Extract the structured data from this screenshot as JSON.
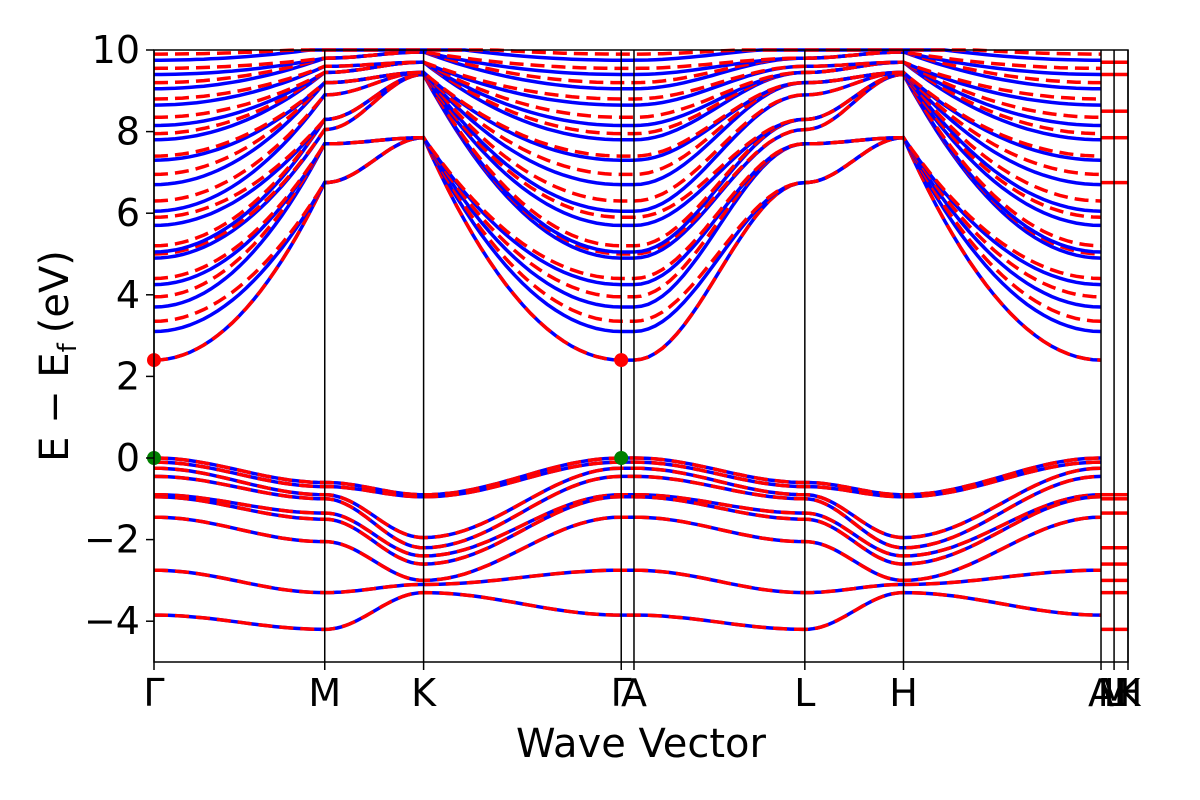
{
  "chart_data": {
    "type": "line",
    "xlabel": "Wave Vector",
    "ylabel_main": "E − E",
    "ylabel_sub": "f",
    "ylabel_unit": "(eV)",
    "ylim": [
      -5,
      10
    ],
    "yticks": [
      10,
      8,
      6,
      4,
      2,
      0,
      -2,
      -4
    ],
    "ytick_labels": [
      "10",
      "8",
      "6",
      "4",
      "2",
      "0",
      "−2",
      "−4"
    ],
    "kpath": [
      {
        "label": "Γ",
        "x": 0.0
      },
      {
        "label": "M",
        "x": 0.1753
      },
      {
        "label": "K",
        "x": 0.2768
      },
      {
        "label": "Γ",
        "x": 0.4797
      },
      {
        "label": "A",
        "x": 0.4928
      },
      {
        "label": "L",
        "x": 0.6682
      },
      {
        "label": "H",
        "x": 0.7695
      },
      {
        "label": "A",
        "x": 0.9723
      },
      {
        "label": "L",
        "x": 0.9857
      },
      {
        "label": "M",
        "x": 0.9857
      },
      {
        "label": "K",
        "x": 1.0
      },
      {
        "label": "H",
        "x": 1.0
      }
    ],
    "segment_boundaries": [
      0.0,
      0.1753,
      0.2768,
      0.4797,
      0.4928,
      0.6682,
      0.7695,
      0.9723,
      0.9857,
      1.0
    ],
    "series": [
      {
        "style": "solid",
        "color": "#0000ff"
      },
      {
        "style": "dashed",
        "color": "#ff0000"
      }
    ],
    "vbm": {
      "energy": 0.0,
      "x": [
        0.0,
        0.4797
      ],
      "color": "#008000"
    },
    "cbm": {
      "energy": 2.4,
      "x": [
        0.0,
        0.4797
      ],
      "color": "#ff0000"
    },
    "valence_at_gamma": [
      0.0,
      -0.1,
      -0.25,
      -0.45,
      -0.9,
      -0.95,
      -1.45,
      -2.75,
      -3.85
    ],
    "valence_at_M": [
      -0.6,
      -0.7,
      -0.9,
      -1.0,
      -1.35,
      -1.5,
      -2.05,
      -3.3,
      -4.2
    ],
    "valence_at_K": [
      -0.9,
      -0.95,
      -1.95,
      -2.2,
      -2.4,
      -2.6,
      -3.0,
      -3.1,
      -3.3
    ],
    "conduction_at_gamma_blue": [
      2.4,
      3.1,
      3.7,
      4.25,
      4.9,
      5.05,
      5.7,
      6.05,
      6.7,
      7.3,
      7.8,
      8.15,
      8.65,
      9.05,
      9.4,
      9.75
    ],
    "conduction_at_gamma_red": [
      2.4,
      3.35,
      3.95,
      4.4,
      5.0,
      5.2,
      5.9,
      6.3,
      6.95,
      7.4,
      7.95,
      8.35,
      8.8,
      9.2,
      9.55,
      9.9
    ],
    "conduction_at_M": [
      6.75,
      7.7,
      8.05,
      8.3,
      8.9,
      9.2,
      9.45,
      9.6,
      9.8,
      9.95
    ],
    "conduction_at_K": [
      7.85,
      9.4,
      9.45,
      9.7,
      9.95
    ],
    "colors": {
      "vertical_lines": "#000000",
      "axes": "#000000"
    }
  }
}
